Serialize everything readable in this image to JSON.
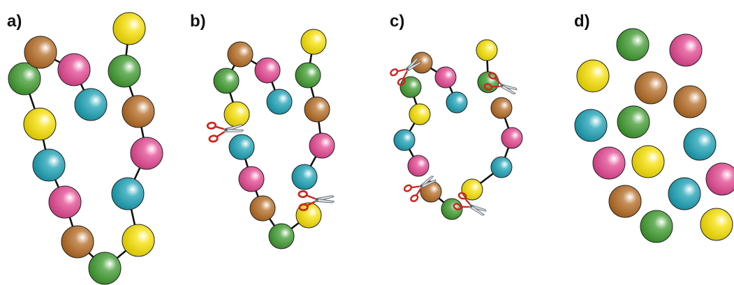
{
  "panels": [
    {
      "key": "a",
      "label": "a)"
    },
    {
      "key": "b",
      "label": "b)"
    },
    {
      "key": "c",
      "label": "c)"
    },
    {
      "key": "d",
      "label": "d)"
    }
  ],
  "colors": {
    "yellow": "#f6df00",
    "green": "#3e9a2e",
    "brown": "#b36a22",
    "pink": "#e2458f",
    "cyan": "#1aa0b4",
    "scissor_handle": "#d0231c",
    "link": "#111111"
  },
  "icons": {
    "bead": "bead-icon",
    "scissors": "scissors-icon"
  }
}
